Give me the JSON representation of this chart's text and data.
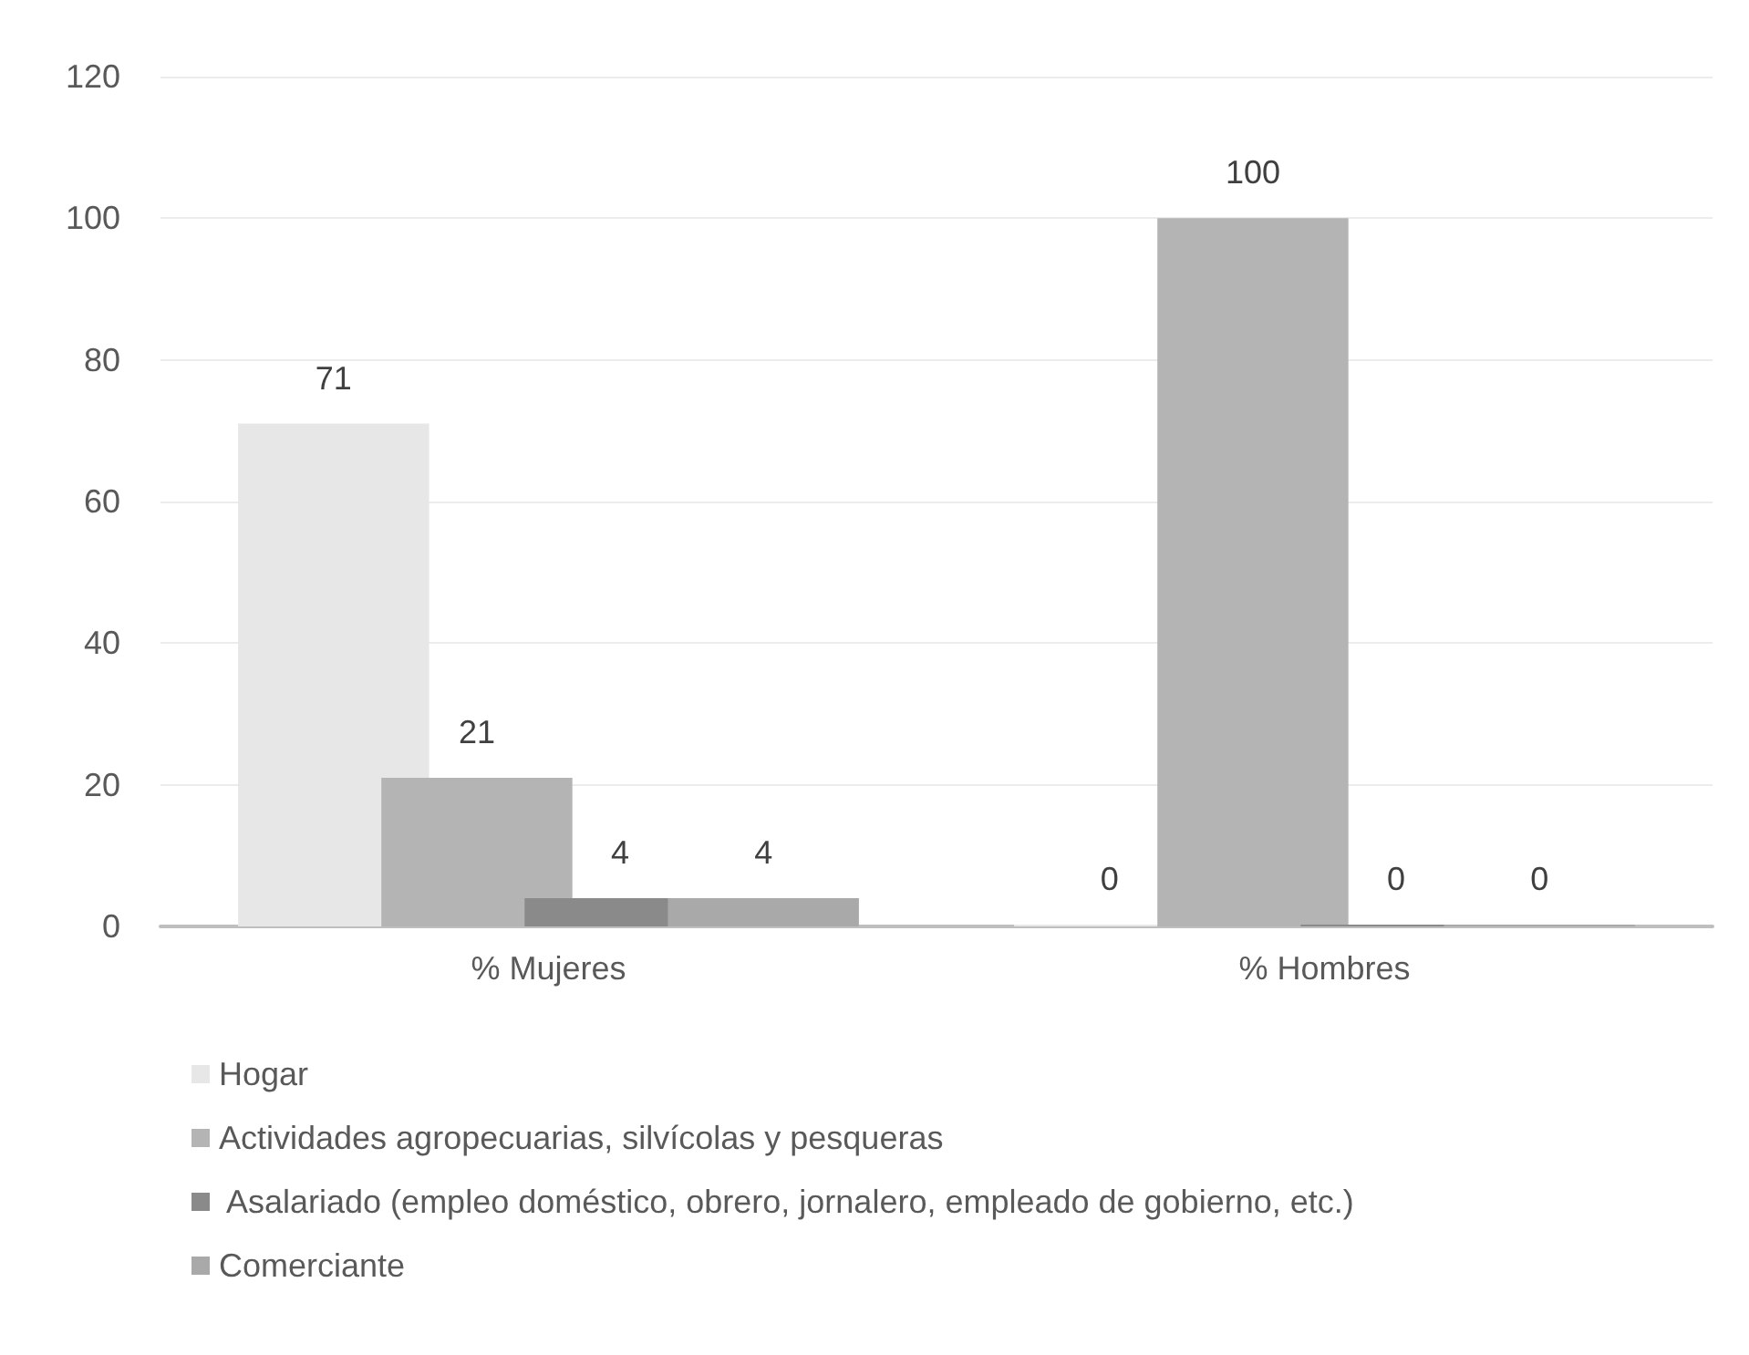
{
  "chart_data": {
    "type": "bar",
    "categories": [
      "% Mujeres",
      "% Hombres"
    ],
    "series": [
      {
        "name": "Hogar",
        "color": "#e7e7e7",
        "values": [
          71,
          0
        ]
      },
      {
        "name": "Actividades agropecuarias, silvícolas y pesqueras",
        "color": "#b4b4b4",
        "values": [
          21,
          100
        ]
      },
      {
        "name": " Asalariado (empleo doméstico, obrero, jornalero, empleado de gobierno, etc.)",
        "color": "#8a8a8a",
        "values": [
          4,
          0
        ]
      },
      {
        "name": "Comerciante",
        "color": "#a9a9a9",
        "values": [
          4,
          0
        ]
      }
    ],
    "ylim": [
      0,
      120
    ],
    "yticks": [
      0,
      20,
      40,
      60,
      80,
      100,
      120
    ],
    "grid": "y",
    "legend": "bottom",
    "data_labels": true
  }
}
